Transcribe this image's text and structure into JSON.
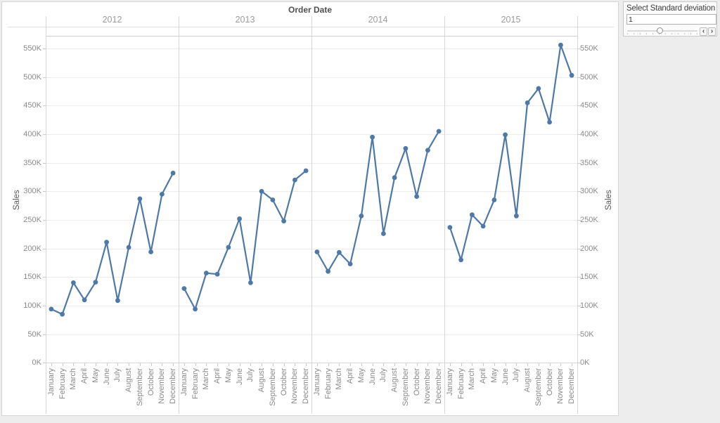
{
  "sheet": {
    "title": "Order Date",
    "y_axis_title_left": "Sales",
    "y_axis_title_right": "Sales"
  },
  "chart_data": {
    "type": "line",
    "title": "Order Date",
    "ylabel": "Sales",
    "grid": "horizontal",
    "legend": "none",
    "line_color": "#4e79a7",
    "ylim_k": [
      0,
      575
    ],
    "y_tick_step_k": 50,
    "y_tick_labels_top_to_bottom": [
      "550K",
      "500K",
      "450K",
      "400K",
      "350K",
      "300K",
      "250K",
      "200K",
      "150K",
      "100K",
      "50K",
      "0K"
    ],
    "categories": [
      "January",
      "February",
      "March",
      "April",
      "May",
      "June",
      "July",
      "August",
      "September",
      "October",
      "November",
      "December"
    ],
    "panels": [
      "2012",
      "2013",
      "2014",
      "2015"
    ],
    "series": [
      {
        "name": "2012",
        "values_k": [
          94,
          85,
          140,
          110,
          141,
          211,
          109,
          202,
          287,
          194,
          295,
          332
        ]
      },
      {
        "name": "2013",
        "values_k": [
          130,
          94,
          157,
          155,
          202,
          252,
          140,
          300,
          285,
          248,
          320,
          336
        ]
      },
      {
        "name": "2014",
        "values_k": [
          194,
          160,
          193,
          173,
          257,
          395,
          226,
          324,
          375,
          291,
          372,
          405
        ]
      },
      {
        "name": "2015",
        "values_k": [
          237,
          180,
          259,
          239,
          285,
          399,
          257,
          455,
          480,
          421,
          556,
          503
        ]
      }
    ]
  },
  "widget": {
    "title": "Select Standard deviation",
    "input_value": "1",
    "slider_position_pct": 46,
    "prev_label": "‹",
    "next_label": "›"
  }
}
